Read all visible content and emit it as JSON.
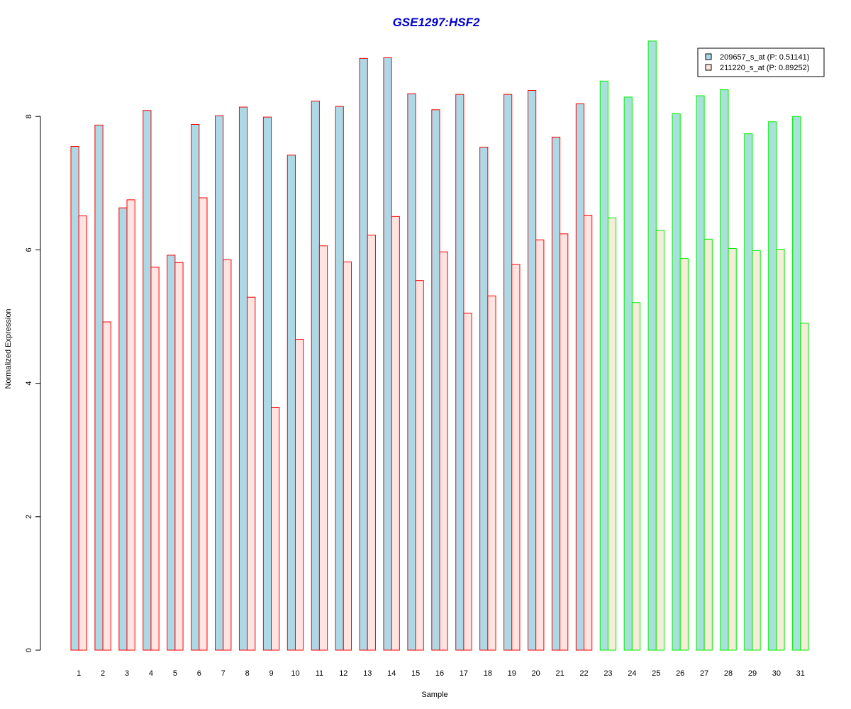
{
  "chart_data": {
    "type": "bar",
    "title": "GSE1297:HSF2",
    "xlabel": "Sample",
    "ylabel": "Normalized Expression",
    "ylim": [
      0,
      9.1
    ],
    "yticks": [
      0,
      2,
      4,
      6,
      8
    ],
    "grid": false,
    "legend_position": "top-right",
    "categories": [
      "1",
      "2",
      "3",
      "4",
      "5",
      "6",
      "7",
      "8",
      "9",
      "10",
      "11",
      "12",
      "13",
      "14",
      "15",
      "16",
      "17",
      "18",
      "19",
      "20",
      "21",
      "22",
      "23",
      "24",
      "25",
      "26",
      "27",
      "28",
      "29",
      "30",
      "31"
    ],
    "series": [
      {
        "name": "209657_s_at (P: 0.51141)",
        "values": [
          7.55,
          7.87,
          6.63,
          8.09,
          5.92,
          7.88,
          8.01,
          8.14,
          7.99,
          7.42,
          8.23,
          8.15,
          8.87,
          8.88,
          8.34,
          8.1,
          8.33,
          7.54,
          8.33,
          8.39,
          7.69,
          8.19,
          8.53,
          8.29,
          9.13,
          8.04,
          8.31,
          8.4,
          7.74,
          7.92,
          8.0
        ]
      },
      {
        "name": "211220_s_at (P: 0.89252)",
        "values": [
          6.51,
          4.92,
          6.75,
          5.74,
          5.81,
          6.78,
          5.85,
          5.29,
          3.64,
          4.66,
          6.06,
          5.82,
          6.22,
          6.5,
          5.54,
          5.97,
          5.05,
          5.31,
          5.78,
          6.15,
          6.24,
          6.52,
          6.48,
          5.21,
          6.29,
          5.87,
          6.16,
          6.02,
          5.99,
          6.01,
          4.9
        ]
      }
    ],
    "groups": [
      {
        "samples": [
          1,
          22
        ],
        "fills": [
          "#add8e6",
          "#ffe4e1"
        ],
        "stroke": "#ff0000"
      },
      {
        "samples": [
          23,
          31
        ],
        "fills": [
          "#a8e0dc",
          "#f5ecd9"
        ],
        "stroke": "#00ee00"
      }
    ],
    "colors": {
      "title": "#0000cc",
      "legend_fills": [
        "#add8e6",
        "#ffe4e1"
      ]
    }
  }
}
